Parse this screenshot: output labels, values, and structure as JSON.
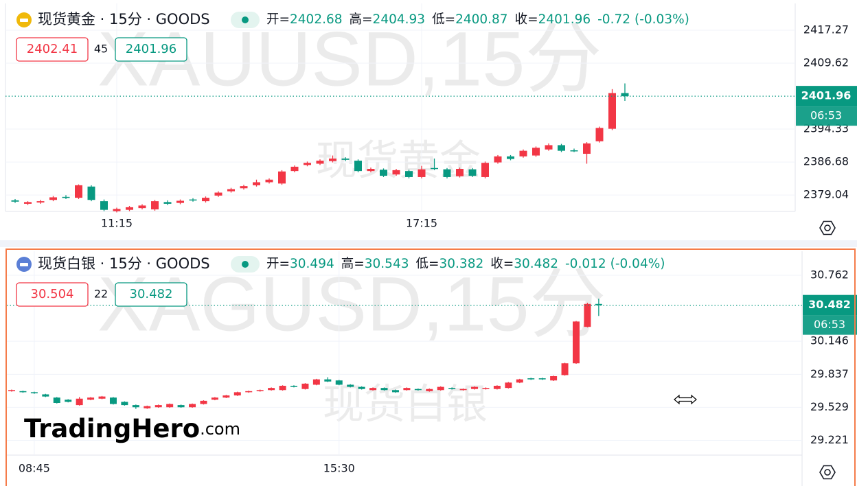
{
  "chart_data": [
    {
      "type": "candlestick",
      "title": "现货黄金 · 15分 · GOODS",
      "watermark": "XAUUSD,15分",
      "watermark_name": "现货黄金",
      "legend_labels": [
        "开=",
        "高=",
        "低=",
        "收="
      ],
      "change": -0.72,
      "change_percent": {
        "value": -0.03,
        "label": "(-0.03%)"
      },
      "bid": 2402.41,
      "spread": 45,
      "ask": 2401.96,
      "countdown": "06:53",
      "up_color": "#f23645",
      "down_color": "#089981",
      "grid": true,
      "ylim": [
        2375.23,
        2423.48
      ],
      "yticks": [
        2417.27,
        2409.62,
        2394.33,
        2386.68,
        2379.04
      ],
      "categories": [
        null,
        null,
        null,
        null,
        null,
        null,
        null,
        null,
        "11:15",
        null,
        null,
        null,
        null,
        null,
        null,
        null,
        null,
        null,
        null,
        null,
        null,
        null,
        null,
        null,
        null,
        null,
        null,
        null,
        null,
        null,
        null,
        null,
        "17:15",
        null,
        null,
        null,
        null,
        null,
        null,
        null,
        null,
        null,
        null,
        null,
        null,
        null,
        null,
        null,
        null
      ],
      "ohlc": [
        [
          2377.8,
          2378.1,
          2377.2,
          2377.5
        ],
        [
          2377.0,
          2377.6,
          2376.7,
          2377.4
        ],
        [
          2377.3,
          2377.9,
          2377.0,
          2377.6
        ],
        [
          2377.9,
          2378.8,
          2377.6,
          2378.5
        ],
        [
          2378.6,
          2379.0,
          2378.1,
          2378.4
        ],
        [
          2378.4,
          2381.5,
          2378.1,
          2381.3
        ],
        [
          2381.0,
          2381.3,
          2377.6,
          2377.9
        ],
        [
          2377.6,
          2378.0,
          2375.3,
          2375.6
        ],
        [
          2375.3,
          2376.1,
          2375.0,
          2375.8
        ],
        [
          2375.6,
          2376.5,
          2375.3,
          2376.2
        ],
        [
          2376.0,
          2376.9,
          2375.7,
          2376.6
        ],
        [
          2375.7,
          2377.9,
          2375.4,
          2377.6
        ],
        [
          2377.4,
          2377.8,
          2376.7,
          2377.0
        ],
        [
          2377.2,
          2378.0,
          2376.9,
          2377.7
        ],
        [
          2378.0,
          2378.3,
          2377.5,
          2377.8
        ],
        [
          2377.6,
          2378.7,
          2377.3,
          2378.4
        ],
        [
          2378.9,
          2379.9,
          2378.6,
          2379.6
        ],
        [
          2379.9,
          2380.7,
          2379.6,
          2380.4
        ],
        [
          2380.6,
          2381.4,
          2380.3,
          2381.1
        ],
        [
          2381.3,
          2382.6,
          2381.0,
          2382.0
        ],
        [
          2382.0,
          2382.9,
          2381.7,
          2382.6
        ],
        [
          2381.7,
          2384.8,
          2381.4,
          2384.5
        ],
        [
          2384.6,
          2385.9,
          2384.3,
          2385.6
        ],
        [
          2386.0,
          2386.8,
          2385.7,
          2386.5
        ],
        [
          2386.3,
          2387.3,
          2386.0,
          2387.0
        ],
        [
          2386.9,
          2388.2,
          2386.6,
          2387.5
        ],
        [
          2387.5,
          2387.8,
          2386.9,
          2387.2
        ],
        [
          2387.0,
          2387.3,
          2384.3,
          2384.6
        ],
        [
          2384.6,
          2385.4,
          2384.3,
          2385.1
        ],
        [
          2384.9,
          2385.2,
          2383.2,
          2383.5
        ],
        [
          2383.8,
          2385.1,
          2383.5,
          2384.8
        ],
        [
          2384.6,
          2384.9,
          2382.9,
          2383.2
        ],
        [
          2383.2,
          2385.8,
          2382.9,
          2385.0
        ],
        [
          2385.3,
          2387.5,
          2384.8,
          2385.1
        ],
        [
          2385.0,
          2385.3,
          2382.9,
          2383.2
        ],
        [
          2383.4,
          2385.4,
          2383.1,
          2385.1
        ],
        [
          2385.0,
          2385.3,
          2383.2,
          2383.5
        ],
        [
          2383.2,
          2386.8,
          2382.9,
          2386.5
        ],
        [
          2386.6,
          2388.3,
          2386.3,
          2388.0
        ],
        [
          2388.0,
          2388.3,
          2387.1,
          2387.4
        ],
        [
          2388.0,
          2389.6,
          2387.7,
          2389.3
        ],
        [
          2388.2,
          2390.3,
          2387.9,
          2390.0
        ],
        [
          2389.6,
          2391.0,
          2389.3,
          2390.6
        ],
        [
          2390.6,
          2390.9,
          2389.0,
          2389.3
        ],
        [
          2389.4,
          2389.8,
          2389.0,
          2389.2
        ],
        [
          2388.6,
          2391.3,
          2386.3,
          2391.0
        ],
        [
          2391.5,
          2394.9,
          2391.2,
          2394.6
        ],
        [
          2394.4,
          2403.6,
          2394.1,
          2402.68
        ],
        [
          2402.68,
          2404.93,
          2400.87,
          2401.96
        ]
      ]
    },
    {
      "type": "candlestick",
      "title": "现货白银 · 15分 · GOODS",
      "watermark": "XAGUSD,15分",
      "watermark_name": "现货白银",
      "legend_labels": [
        "开=",
        "高=",
        "低=",
        "收="
      ],
      "change": -0.012,
      "change_percent": {
        "value": -0.04,
        "label": "(-0.04%)"
      },
      "bid": 30.504,
      "spread": 22,
      "ask": 30.482,
      "countdown": "06:53",
      "up_color": "#f23645",
      "down_color": "#089981",
      "grid": true,
      "ylim": [
        29.083,
        30.986
      ],
      "yticks": [
        30.762,
        30.146,
        29.837,
        29.529,
        29.221
      ],
      "categories": [
        null,
        null,
        "08:45",
        null,
        null,
        null,
        null,
        null,
        null,
        null,
        null,
        null,
        null,
        null,
        null,
        null,
        null,
        null,
        null,
        null,
        null,
        null,
        null,
        null,
        null,
        null,
        null,
        null,
        null,
        "15:30",
        null,
        null,
        null,
        null,
        null,
        null,
        null,
        null,
        null,
        null,
        null,
        null,
        null,
        null,
        null,
        null,
        null,
        null,
        null,
        null,
        null,
        null,
        null
      ],
      "ohlc": [
        [
          29.68,
          29.695,
          29.675,
          29.69
        ],
        [
          29.68,
          29.685,
          29.665,
          29.67
        ],
        [
          29.67,
          29.675,
          29.655,
          29.66
        ],
        [
          29.65,
          29.655,
          29.625,
          29.63
        ],
        [
          29.62,
          29.625,
          29.565,
          29.57
        ],
        [
          29.6,
          29.605,
          29.575,
          29.58
        ],
        [
          29.55,
          29.625,
          29.545,
          29.61
        ],
        [
          29.6,
          29.625,
          29.595,
          29.62
        ],
        [
          29.61,
          29.635,
          29.605,
          29.63
        ],
        [
          29.62,
          29.625,
          29.555,
          29.56
        ],
        [
          29.58,
          29.585,
          29.545,
          29.55
        ],
        [
          29.55,
          29.555,
          29.515,
          29.53
        ],
        [
          29.52,
          29.545,
          29.515,
          29.54
        ],
        [
          29.53,
          29.555,
          29.525,
          29.55
        ],
        [
          29.53,
          29.565,
          29.525,
          29.56
        ],
        [
          29.55,
          29.555,
          29.525,
          29.53
        ],
        [
          29.53,
          29.565,
          29.525,
          29.56
        ],
        [
          29.56,
          29.595,
          29.555,
          29.59
        ],
        [
          29.6,
          29.625,
          29.595,
          29.62
        ],
        [
          29.62,
          29.645,
          29.615,
          29.64
        ],
        [
          29.64,
          29.675,
          29.635,
          29.67
        ],
        [
          29.67,
          29.685,
          29.665,
          29.68
        ],
        [
          29.68,
          29.695,
          29.675,
          29.69
        ],
        [
          29.69,
          29.715,
          29.685,
          29.71
        ],
        [
          29.69,
          29.735,
          29.685,
          29.73
        ],
        [
          29.73,
          29.735,
          29.715,
          29.72
        ],
        [
          29.7,
          29.755,
          29.695,
          29.75
        ],
        [
          29.74,
          29.795,
          29.735,
          29.79
        ],
        [
          29.79,
          29.81,
          29.765,
          29.77
        ],
        [
          29.78,
          29.785,
          29.735,
          29.74
        ],
        [
          29.74,
          29.745,
          29.715,
          29.72
        ],
        [
          29.72,
          29.725,
          29.695,
          29.7
        ],
        [
          29.69,
          29.715,
          29.685,
          29.71
        ],
        [
          29.71,
          29.715,
          29.685,
          29.69
        ],
        [
          29.69,
          29.695,
          29.665,
          29.67
        ],
        [
          29.69,
          29.715,
          29.685,
          29.71
        ],
        [
          29.7,
          29.705,
          29.685,
          29.69
        ],
        [
          29.68,
          29.705,
          29.675,
          29.7
        ],
        [
          29.69,
          29.725,
          29.685,
          29.72
        ],
        [
          29.71,
          29.715,
          29.695,
          29.7
        ],
        [
          29.69,
          29.705,
          29.685,
          29.7
        ],
        [
          29.7,
          29.725,
          29.695,
          29.72
        ],
        [
          29.7,
          29.715,
          29.695,
          29.71
        ],
        [
          29.7,
          29.735,
          29.695,
          29.73
        ],
        [
          29.71,
          29.765,
          29.705,
          29.76
        ],
        [
          29.76,
          29.795,
          29.755,
          29.79
        ],
        [
          29.8,
          29.805,
          29.785,
          29.79
        ],
        [
          29.8,
          29.805,
          29.785,
          29.79
        ],
        [
          29.78,
          29.825,
          29.775,
          29.82
        ],
        [
          29.83,
          29.945,
          29.825,
          29.94
        ],
        [
          29.94,
          30.335,
          29.935,
          30.33
        ],
        [
          30.28,
          30.505,
          30.275,
          30.494
        ],
        [
          30.494,
          30.543,
          30.382,
          30.482
        ]
      ]
    }
  ],
  "logo": {
    "brand": "TradingHero",
    "suffix": ".com"
  }
}
